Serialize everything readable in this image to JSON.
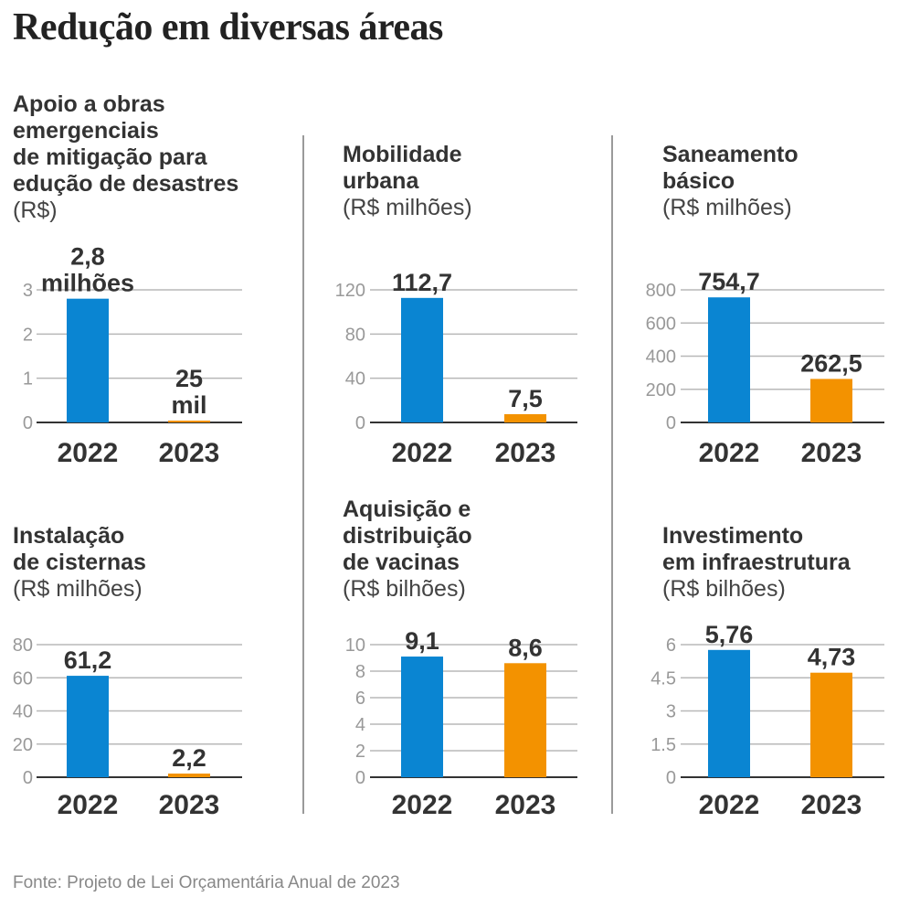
{
  "title": "Redução em diversas áreas",
  "source": "Fonte: Projeto de Lei Orçamentária Anual de 2023",
  "colors": {
    "2022": "#0a85d2",
    "2023": "#f39200",
    "grid": "#b8b8b8",
    "axis": "#333333"
  },
  "chart_data": [
    {
      "type": "bar",
      "title_lines": [
        "Apoio a obras",
        "emergenciais",
        "de mitigação para",
        "edução de desastres"
      ],
      "unit": "(R$)",
      "categories": [
        "2022",
        "2023"
      ],
      "values": [
        2.8,
        0.025
      ],
      "value_labels": [
        "2,8\nmilhões",
        "25\nmil"
      ],
      "yticks": [
        "0",
        "1",
        "2",
        "3"
      ],
      "ylim": [
        0,
        3
      ]
    },
    {
      "type": "bar",
      "title_lines": [
        "Mobilidade",
        "urbana"
      ],
      "unit": "(R$ milhões)",
      "categories": [
        "2022",
        "2023"
      ],
      "values": [
        112.7,
        7.5
      ],
      "value_labels": [
        "112,7",
        "7,5"
      ],
      "yticks": [
        "0",
        "40",
        "80",
        "120"
      ],
      "ylim": [
        0,
        120
      ]
    },
    {
      "type": "bar",
      "title_lines": [
        "Saneamento",
        "básico"
      ],
      "unit": "(R$ milhões)",
      "categories": [
        "2022",
        "2023"
      ],
      "values": [
        754.7,
        262.5
      ],
      "value_labels": [
        "754,7",
        "262,5"
      ],
      "yticks": [
        "0",
        "200",
        "400",
        "600",
        "800"
      ],
      "ylim": [
        0,
        800
      ]
    },
    {
      "type": "bar",
      "title_lines": [
        "Instalação",
        "de cisternas"
      ],
      "unit": "(R$ milhões)",
      "categories": [
        "2022",
        "2023"
      ],
      "values": [
        61.2,
        2.2
      ],
      "value_labels": [
        "61,2",
        "2,2"
      ],
      "yticks": [
        "0",
        "20",
        "40",
        "60",
        "80"
      ],
      "ylim": [
        0,
        80
      ]
    },
    {
      "type": "bar",
      "title_lines": [
        "Aquisição e",
        "distribuição",
        "de vacinas"
      ],
      "unit": "(R$ bilhões)",
      "categories": [
        "2022",
        "2023"
      ],
      "values": [
        9.1,
        8.6
      ],
      "value_labels": [
        "9,1",
        "8,6"
      ],
      "yticks": [
        "0",
        "2",
        "4",
        "6",
        "8",
        "10"
      ],
      "ylim": [
        0,
        10
      ]
    },
    {
      "type": "bar",
      "title_lines": [
        "Investimento",
        "em infraestrutura"
      ],
      "unit": "(R$ bilhões)",
      "categories": [
        "2022",
        "2023"
      ],
      "values": [
        5.76,
        4.73
      ],
      "value_labels": [
        "5,76",
        "4,73"
      ],
      "yticks": [
        "0",
        "1.5",
        "3",
        "4.5",
        "6"
      ],
      "ylim": [
        0,
        6
      ]
    }
  ]
}
